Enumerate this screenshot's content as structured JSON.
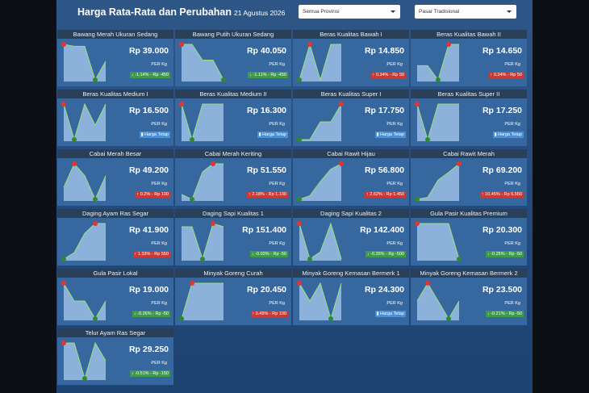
{
  "header": {
    "title": "Harga Rata-Rata dan Perubahan",
    "date": "21 Agustus 2026",
    "province_select": "Semua Provinsi",
    "market_select": "Pasar Tradisional"
  },
  "cards": [
    {
      "name": "Bawang Merah Ukuran Sedang",
      "price": "Rp 39.000",
      "unit": "PER Kg",
      "change": "-1.14% - Rp -450",
      "trend": "down",
      "sparkline": [
        39450,
        39400,
        39400,
        38500,
        39000
      ]
    },
    {
      "name": "Bawang Putih Ukuran Sedang",
      "price": "Rp 40.050",
      "unit": "PER Kg",
      "change": "-1.11% - Rp -450",
      "trend": "down",
      "sparkline": [
        40500,
        40500,
        40300,
        40300,
        40050
      ]
    },
    {
      "name": "Beras Kualitas Bawah I",
      "price": "Rp 14.850",
      "unit": "PER Kg",
      "change": "0.34% - Rp 50",
      "trend": "up",
      "sparkline": [
        14800,
        14850,
        14800,
        14850,
        14850
      ]
    },
    {
      "name": "Beras Kualitas Bawah II",
      "price": "Rp 14.650",
      "unit": "PER Kg",
      "change": "0.34% - Rp 50",
      "trend": "up",
      "sparkline": [
        14620,
        14620,
        14600,
        14650,
        14650
      ]
    },
    {
      "name": "Beras Kualitas Medium I",
      "price": "Rp 16.500",
      "unit": "PER Kg",
      "change": "Harga Tetap",
      "trend": "flat",
      "sparkline": [
        16500,
        16450,
        16500,
        16470,
        16500
      ]
    },
    {
      "name": "Beras Kualitas Medium II",
      "price": "Rp 16.300",
      "unit": "PER Kg",
      "change": "Harga Tetap",
      "trend": "flat",
      "sparkline": [
        16300,
        16250,
        16300,
        16300,
        16300
      ]
    },
    {
      "name": "Beras Kualitas Super I",
      "price": "Rp 17.750",
      "unit": "PER Kg",
      "change": "Harga Tetap",
      "trend": "flat",
      "sparkline": [
        17740,
        17740,
        17745,
        17745,
        17750
      ]
    },
    {
      "name": "Beras Kualitas Super II",
      "price": "Rp 17.250",
      "unit": "PER Kg",
      "change": "Harga Tetap",
      "trend": "flat",
      "sparkline": [
        17250,
        17200,
        17250,
        17250,
        17250
      ]
    },
    {
      "name": "Cabai Merah Besar",
      "price": "Rp 49.200",
      "unit": "PER Kg",
      "change": "0.2% - Rp 100",
      "trend": "up",
      "sparkline": [
        49100,
        49300,
        49200,
        49000,
        49200
      ]
    },
    {
      "name": "Cabai Merah Keriting",
      "price": "Rp 51.550",
      "unit": "PER Kg",
      "change": "2.18% - Rp 1.100",
      "trend": "up",
      "sparkline": [
        50600,
        50450,
        51300,
        51550,
        51550
      ]
    },
    {
      "name": "Cabai Rawit Hijau",
      "price": "Rp 56.800",
      "unit": "PER Kg",
      "change": "2.62% - Rp 1.450",
      "trend": "up",
      "sparkline": [
        54800,
        55000,
        55800,
        56500,
        56800
      ]
    },
    {
      "name": "Cabai Rawit Merah",
      "price": "Rp 69.200",
      "unit": "PER Kg",
      "change": "10.45% - Rp 6.550",
      "trend": "up",
      "sparkline": [
        60000,
        60500,
        65000,
        67000,
        69200
      ]
    },
    {
      "name": "Daging Ayam Ras Segar",
      "price": "Rp 41.900",
      "unit": "PER Kg",
      "change": "1.33% - Rp 550",
      "trend": "up",
      "sparkline": [
        40800,
        41000,
        41600,
        41900,
        41900
      ]
    },
    {
      "name": "Daging Sapi Kualitas 1",
      "price": "Rp 151.400",
      "unit": "PER Kg",
      "change": "-0.03% - Rp -50",
      "trend": "down",
      "sparkline": [
        151400,
        151400,
        150900,
        151450,
        151400
      ]
    },
    {
      "name": "Daging Sapi Kualitas 2",
      "price": "Rp 142.400",
      "unit": "PER Kg",
      "change": "-0.35% - Rp -500",
      "trend": "down",
      "sparkline": [
        142900,
        142400,
        142500,
        142900,
        142400
      ]
    },
    {
      "name": "Gula Pasir Kualitas Premium",
      "price": "Rp 20.300",
      "unit": "PER Kg",
      "change": "-0.25% - Rp -50",
      "trend": "down",
      "sparkline": [
        20350,
        20350,
        20350,
        20350,
        20300
      ]
    },
    {
      "name": "Gula Pasir Lokal",
      "price": "Rp 19.000",
      "unit": "PER Kg",
      "change": "-0.26% - Rp -50",
      "trend": "down",
      "sparkline": [
        19050,
        19000,
        19000,
        18950,
        19000
      ]
    },
    {
      "name": "Minyak Goreng Curah",
      "price": "Rp 20.450",
      "unit": "PER Kg",
      "change": "0.49% - Rp 100",
      "trend": "up",
      "sparkline": [
        20350,
        20450,
        20450,
        20450,
        20450
      ]
    },
    {
      "name": "Minyak Goreng Kemasan Bermerk 1",
      "price": "Rp 24.300",
      "unit": "PER Kg",
      "change": "Harga Tetap",
      "trend": "flat",
      "sparkline": [
        24300,
        24250,
        24300,
        24200,
        24300
      ]
    },
    {
      "name": "Minyak Goreng Kemasan Bermerk 2",
      "price": "Rp 23.500",
      "unit": "PER Kg",
      "change": "-0.21% - Rp -50",
      "trend": "down",
      "sparkline": [
        23500,
        23550,
        23500,
        23450,
        23500
      ]
    },
    {
      "name": "Telur Ayam Ras Segar",
      "price": "Rp 29.250",
      "unit": "PER Kg",
      "change": "-0.51% - Rp -150",
      "trend": "down",
      "sparkline": [
        29400,
        29400,
        29100,
        29400,
        29250
      ]
    }
  ]
}
